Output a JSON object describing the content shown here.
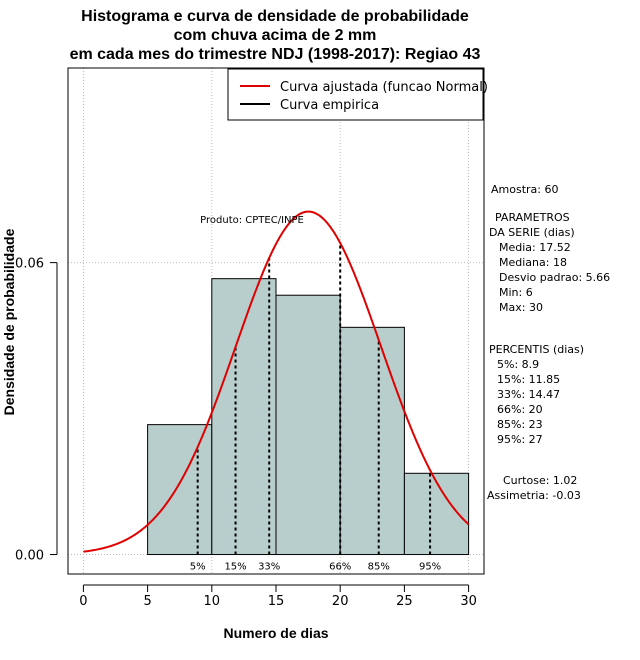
{
  "chart_data": {
    "type": "histogram",
    "title_lines": [
      "Histograma e curva de densidade de probabilidade",
      "com chuva acima de 2 mm",
      "em cada mes do trimestre NDJ (1998-2017): Regiao 43"
    ],
    "xlabel": "Numero de dias",
    "ylabel": "Densidade de probabilidade",
    "xlim": [
      -1.2,
      31.2
    ],
    "ylim": [
      -0.004,
      0.1
    ],
    "x_ticks": [
      0,
      5,
      10,
      15,
      20,
      25,
      30
    ],
    "x_tick_labels": [
      "0",
      "5",
      "10",
      "15",
      "20",
      "25",
      "30"
    ],
    "y_ticks": [
      0.0,
      0.06
    ],
    "y_tick_labels": [
      "0.00",
      "0.06"
    ],
    "grid_x": [
      0,
      10,
      20,
      30
    ],
    "grid_y": [
      0.0,
      0.06,
      0.1
    ],
    "bars": [
      {
        "x0": 5,
        "x1": 10,
        "density": 0.0267
      },
      {
        "x0": 10,
        "x1": 15,
        "density": 0.0567
      },
      {
        "x0": 15,
        "x1": 20,
        "density": 0.0533
      },
      {
        "x0": 20,
        "x1": 25,
        "density": 0.0467
      },
      {
        "x0": 25,
        "x1": 30,
        "density": 0.0167
      }
    ],
    "normal_curve": {
      "mean": 17.52,
      "sd": 5.66,
      "x_range": [
        0,
        30
      ]
    },
    "percentiles": [
      {
        "label": "5%",
        "value": 8.9
      },
      {
        "label": "15%",
        "value": 11.85
      },
      {
        "label": "33%",
        "value": 14.47
      },
      {
        "label": "66%",
        "value": 20
      },
      {
        "label": "85%",
        "value": 23
      },
      {
        "label": "95%",
        "value": 27
      }
    ],
    "legend": {
      "position": "top-right",
      "entries": [
        {
          "label": "Curva ajustada (funcao Normal)",
          "color": "#e00000"
        },
        {
          "label": "Curva empirica",
          "color": "#000000"
        }
      ]
    },
    "annotations": {
      "produto": "Produto: CPTEC/INPE",
      "amostra": "Amostra: 60",
      "parametros_title": "PARAMETROS",
      "parametros_subtitle": "DA SERIE (dias)",
      "parametros": [
        "Media: 17.52",
        "Mediana: 18",
        "Desvio padrao: 5.66",
        "Min: 6",
        "Max: 30"
      ],
      "percentis_title": "PERCENTIS (dias)",
      "percentis": [
        "5%: 8.9",
        "15%: 11.85",
        "33%: 14.47",
        "66%: 20",
        "85%: 23",
        "95%: 27"
      ],
      "curtose": "Curtose: 1.02",
      "assimetria": "Assimetria: -0.03"
    },
    "colors": {
      "bar_fill": "#b8cecc",
      "bar_stroke": "#000000",
      "curve": "#e00000",
      "grid": "#bbbbbb"
    }
  }
}
